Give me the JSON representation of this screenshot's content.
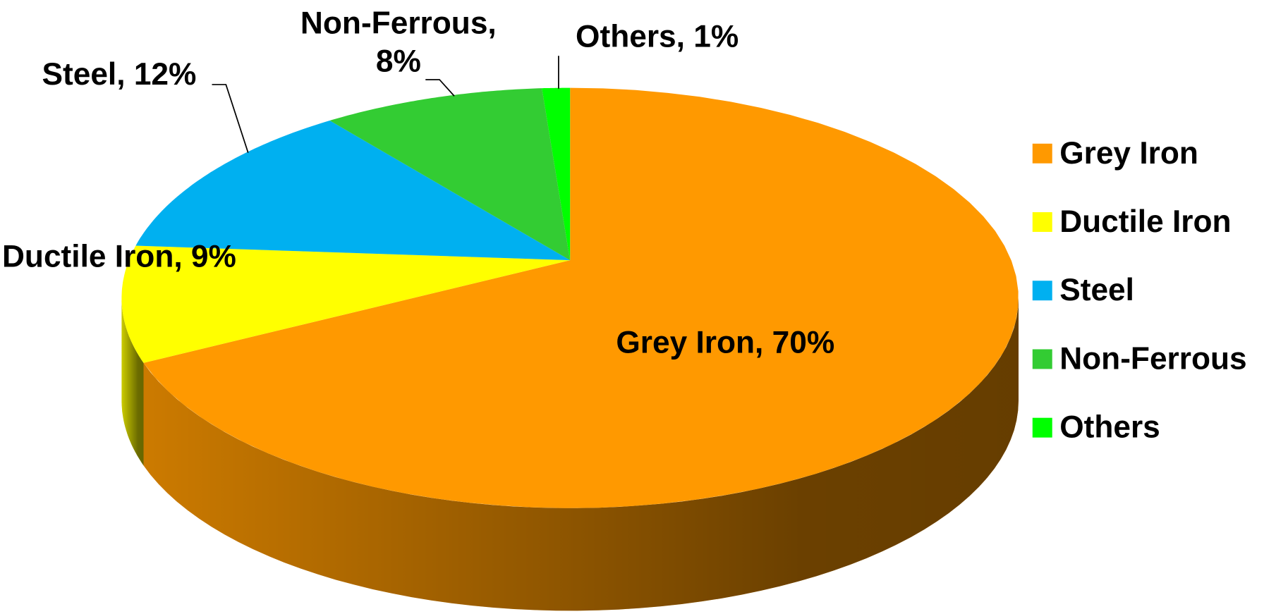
{
  "chart_data": {
    "type": "pie",
    "categories": [
      "Grey Iron",
      "Ductile Iron",
      "Steel",
      "Non-Ferrous",
      "Others"
    ],
    "values": [
      70,
      9,
      12,
      8,
      1
    ],
    "value_labels": [
      "Grey Iron, 70%",
      "Ductile Iron, 9%",
      "Steel, 12%",
      "Non-Ferrous, 8%",
      "Others, 1%"
    ],
    "colors": [
      "#ff9900",
      "#ffff00",
      "#00b0f0",
      "#33cc33",
      "#00ff00"
    ],
    "legend": "right"
  }
}
